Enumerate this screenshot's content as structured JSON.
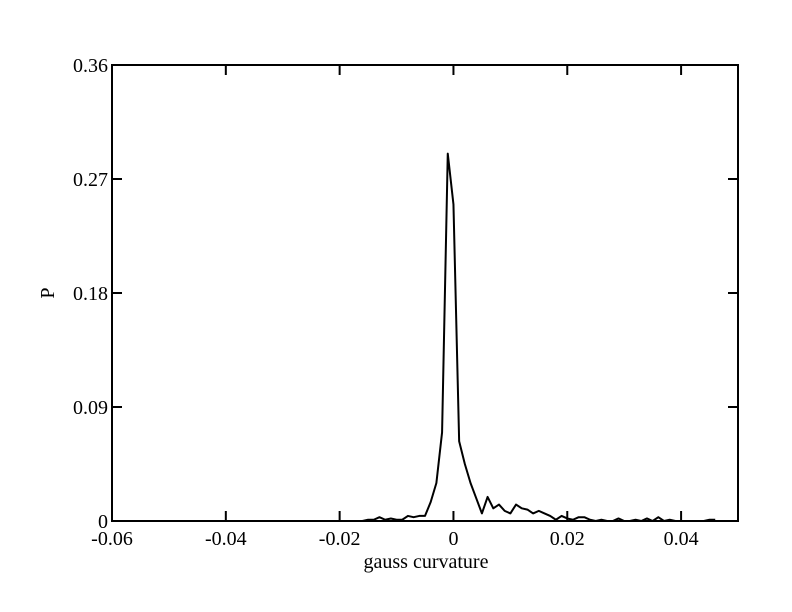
{
  "chart_data": {
    "type": "line",
    "x_label": "gauss curvature",
    "y_label": "P",
    "x": [
      -0.02,
      -0.019,
      -0.018,
      -0.017,
      -0.016,
      -0.015,
      -0.014,
      -0.013,
      -0.012,
      -0.011,
      -0.01,
      -0.009,
      -0.008,
      -0.007,
      -0.006,
      -0.005,
      -0.004,
      -0.003,
      -0.002,
      -0.001,
      0,
      0.001,
      0.002,
      0.003,
      0.004,
      0.005,
      0.006,
      0.007,
      0.008,
      0.009,
      0.01,
      0.011,
      0.012,
      0.013,
      0.014,
      0.015,
      0.016,
      0.017,
      0.018,
      0.019,
      0.02,
      0.021,
      0.022,
      0.023,
      0.024,
      0.025,
      0.026,
      0.027,
      0.028,
      0.029,
      0.03,
      0.031,
      0.032,
      0.033,
      0.034,
      0.035,
      0.036,
      0.037,
      0.038,
      0.039,
      0.04,
      0.041,
      0.042,
      0.043,
      0.044,
      0.045,
      0.046
    ],
    "series": [
      {
        "color": "#000000",
        "values": [
          0,
          0,
          0,
          0,
          0,
          0.001,
          0.001,
          0.003,
          0.001,
          0.002,
          0.001,
          0.001,
          0.004,
          0.003,
          0.004,
          0.004,
          0.015,
          0.03,
          0.07,
          0.29,
          0.25,
          0.063,
          0.045,
          0.03,
          0.018,
          0.006,
          0.019,
          0.01,
          0.013,
          0.008,
          0.006,
          0.013,
          0.01,
          0.009,
          0.006,
          0.008,
          0.006,
          0.004,
          0.001,
          0.004,
          0.002,
          0.001,
          0.003,
          0.003,
          0.001,
          0,
          0.001,
          0,
          0,
          0.002,
          0,
          0,
          0.001,
          0,
          0.002,
          0,
          0.003,
          0,
          0.001,
          0,
          0,
          0,
          0,
          0,
          0,
          0.001,
          0.001
        ]
      }
    ],
    "xlim": [
      -0.06,
      0.05
    ],
    "xticks": [
      -0.06,
      -0.04,
      -0.02,
      0,
      0.02,
      0.04
    ],
    "ylim": [
      0,
      0.36
    ],
    "yticks": [
      0,
      0.09,
      0.18,
      0.27,
      0.36
    ],
    "grid": false
  }
}
